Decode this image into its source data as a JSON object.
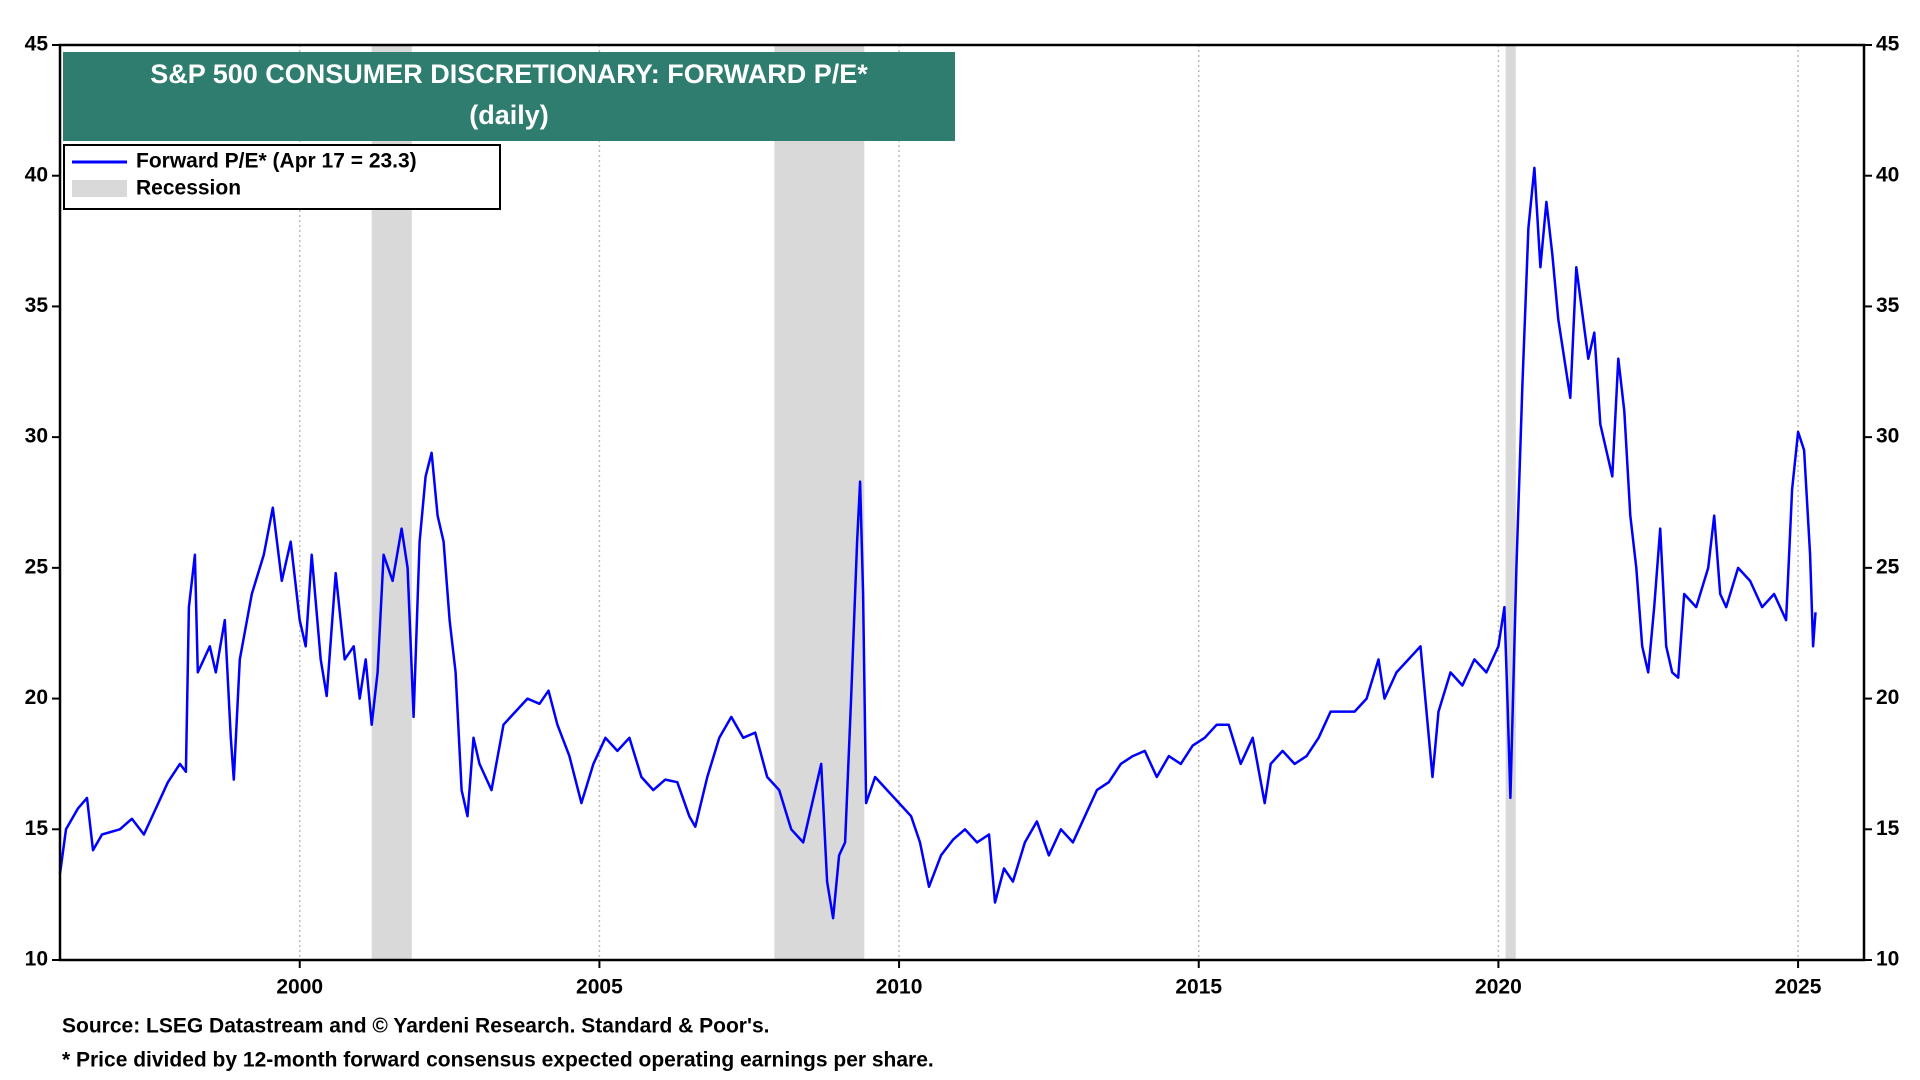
{
  "chart_data": {
    "type": "line",
    "title": "S&P 500 CONSUMER DISCRETIONARY: FORWARD P/E*",
    "subtitle": "(daily)",
    "x": [
      1996.0,
      1996.1,
      1996.3,
      1996.45,
      1996.55,
      1996.7,
      1997.0,
      1997.2,
      1997.4,
      1997.6,
      1997.8,
      1998.0,
      1998.1,
      1998.15,
      1998.25,
      1998.3,
      1998.5,
      1998.6,
      1998.75,
      1998.85,
      1998.9,
      1999.0,
      1999.2,
      1999.4,
      1999.55,
      1999.7,
      1999.85,
      2000.0,
      2000.1,
      2000.2,
      2000.35,
      2000.45,
      2000.6,
      2000.75,
      2000.9,
      2001.0,
      2001.1,
      2001.2,
      2001.3,
      2001.4,
      2001.55,
      2001.7,
      2001.8,
      2001.9,
      2002.0,
      2002.1,
      2002.2,
      2002.3,
      2002.4,
      2002.5,
      2002.6,
      2002.7,
      2002.8,
      2002.9,
      2003.0,
      2003.2,
      2003.4,
      2003.6,
      2003.8,
      2004.0,
      2004.15,
      2004.3,
      2004.5,
      2004.7,
      2004.9,
      2005.1,
      2005.3,
      2005.5,
      2005.7,
      2005.9,
      2006.1,
      2006.3,
      2006.5,
      2006.6,
      2006.8,
      2007.0,
      2007.2,
      2007.4,
      2007.6,
      2007.8,
      2008.0,
      2008.2,
      2008.4,
      2008.5,
      2008.7,
      2008.8,
      2008.9,
      2009.0,
      2009.1,
      2009.2,
      2009.3,
      2009.35,
      2009.4,
      2009.45,
      2009.6,
      2009.8,
      2010.0,
      2010.2,
      2010.35,
      2010.5,
      2010.7,
      2010.9,
      2011.1,
      2011.3,
      2011.5,
      2011.6,
      2011.75,
      2011.9,
      2012.1,
      2012.3,
      2012.5,
      2012.7,
      2012.9,
      2013.1,
      2013.3,
      2013.5,
      2013.7,
      2013.9,
      2014.1,
      2014.3,
      2014.5,
      2014.7,
      2014.9,
      2015.1,
      2015.3,
      2015.5,
      2015.7,
      2015.9,
      2016.1,
      2016.2,
      2016.4,
      2016.6,
      2016.8,
      2017.0,
      2017.2,
      2017.4,
      2017.6,
      2017.8,
      2018.0,
      2018.1,
      2018.3,
      2018.5,
      2018.7,
      2018.8,
      2018.9,
      2019.0,
      2019.2,
      2019.4,
      2019.6,
      2019.8,
      2020.0,
      2020.1,
      2020.15,
      2020.2,
      2020.3,
      2020.4,
      2020.5,
      2020.6,
      2020.7,
      2020.8,
      2020.9,
      2021.0,
      2021.2,
      2021.3,
      2021.5,
      2021.6,
      2021.7,
      2021.9,
      2022.0,
      2022.1,
      2022.2,
      2022.3,
      2022.4,
      2022.5,
      2022.6,
      2022.7,
      2022.8,
      2022.9,
      2023.0,
      2023.1,
      2023.3,
      2023.5,
      2023.6,
      2023.7,
      2023.8,
      2024.0,
      2024.2,
      2024.4,
      2024.6,
      2024.8,
      2024.9,
      2025.0,
      2025.1,
      2025.2,
      2025.25,
      2025.29
    ],
    "series": [
      {
        "name": "Forward P/E* (Apr 17 = 23.3)",
        "color": "#0000ff",
        "values": [
          13.3,
          15.0,
          15.8,
          16.2,
          14.2,
          14.8,
          15.0,
          15.4,
          14.8,
          15.8,
          16.8,
          17.5,
          17.2,
          23.5,
          25.5,
          21.0,
          22.0,
          21.0,
          23.0,
          18.5,
          16.9,
          21.5,
          24.0,
          25.5,
          27.3,
          24.5,
          26.0,
          23.0,
          22.0,
          25.5,
          21.5,
          20.1,
          24.8,
          21.5,
          22.0,
          20.0,
          21.5,
          19.0,
          21.0,
          25.5,
          24.5,
          26.5,
          25.0,
          19.3,
          26.0,
          28.5,
          29.4,
          27.0,
          26.0,
          23.0,
          21.0,
          16.5,
          15.5,
          18.5,
          17.5,
          16.5,
          19.0,
          19.5,
          20.0,
          19.8,
          20.3,
          19.0,
          17.8,
          16.0,
          17.5,
          18.5,
          18.0,
          18.5,
          17.0,
          16.5,
          16.9,
          16.8,
          15.5,
          15.1,
          17.0,
          18.5,
          19.3,
          18.5,
          18.7,
          17.0,
          16.5,
          15.0,
          14.5,
          15.5,
          17.5,
          13.0,
          11.6,
          14.0,
          14.5,
          20.0,
          26.0,
          28.3,
          24.0,
          16.0,
          17.0,
          16.5,
          16.0,
          15.5,
          14.5,
          12.8,
          14.0,
          14.6,
          15.0,
          14.5,
          14.8,
          12.2,
          13.5,
          13.0,
          14.5,
          15.3,
          14.0,
          15.0,
          14.5,
          15.5,
          16.5,
          16.8,
          17.5,
          17.8,
          18.0,
          17.0,
          17.8,
          17.5,
          18.2,
          18.5,
          19.0,
          19.0,
          17.5,
          18.5,
          16.0,
          17.5,
          18.0,
          17.5,
          17.8,
          18.5,
          19.5,
          19.5,
          19.5,
          20.0,
          21.5,
          20.0,
          21.0,
          21.5,
          22.0,
          19.5,
          17.0,
          19.5,
          21.0,
          20.5,
          21.5,
          21.0,
          22.0,
          23.5,
          20.0,
          16.2,
          25.0,
          32.0,
          38.0,
          40.3,
          36.5,
          39.0,
          37.0,
          34.5,
          31.5,
          36.5,
          33.0,
          34.0,
          30.5,
          28.5,
          33.0,
          31.0,
          27.0,
          25.0,
          22.0,
          21.0,
          23.5,
          26.5,
          22.0,
          21.0,
          20.8,
          24.0,
          23.5,
          25.0,
          27.0,
          24.0,
          23.5,
          25.0,
          24.5,
          23.5,
          24.0,
          23.0,
          28.0,
          30.2,
          29.5,
          25.5,
          22.0,
          23.3
        ]
      }
    ],
    "recessions": {
      "name": "Recession",
      "color": "#d9d9d9",
      "spans": [
        [
          2001.2,
          2001.87
        ],
        [
          2007.92,
          2009.42
        ],
        [
          2020.12,
          2020.29
        ]
      ]
    },
    "xlim": [
      1996.0,
      2026.1
    ],
    "xticks": [
      2000,
      2005,
      2010,
      2015,
      2020,
      2025
    ],
    "ylim": [
      10,
      45
    ],
    "yticks": [
      10,
      15,
      20,
      25,
      30,
      35,
      40,
      45
    ],
    "grid": true,
    "source": "Source: LSEG Datastream and © Yardeni Research. Standard & Poor's.",
    "note": "* Price divided by 12-month forward consensus expected operating earnings per share."
  }
}
